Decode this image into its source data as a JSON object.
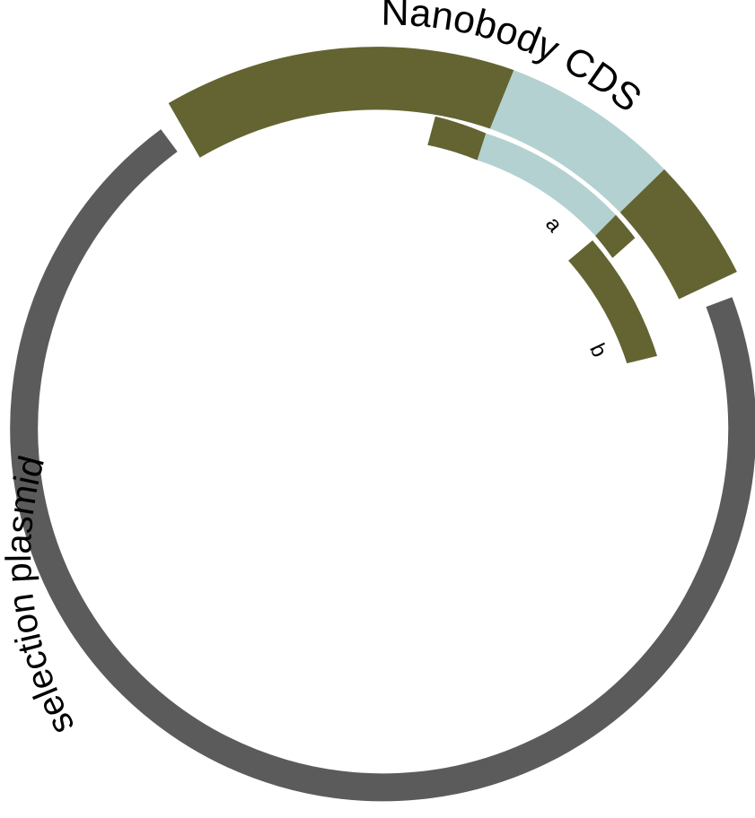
{
  "labels": {
    "insert": "Nanobody CDS",
    "backbone": "selection plasmid",
    "fragment_a": "a",
    "fragment_b": "b"
  },
  "colors": {
    "backbone": "#5b5b5b",
    "flank": "#646432",
    "variable": "#b3d1d1",
    "background": "#ffffff",
    "text": "#000000"
  }
}
